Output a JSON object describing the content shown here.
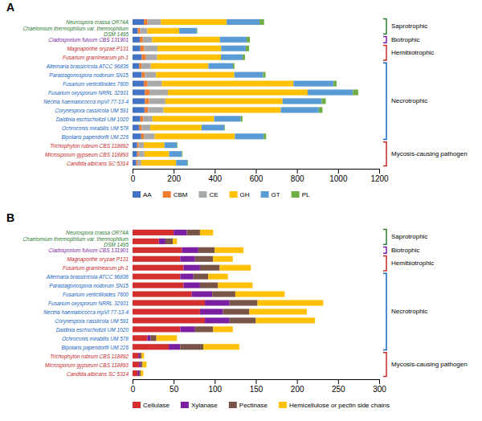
{
  "chart_data": [
    {
      "type": "bar",
      "orientation": "horizontal",
      "stacked": true,
      "grid": false,
      "title": "A",
      "categories": [
        "Neurospora crassa OR74A",
        "Chaetomium thermophilum var. thermophilum\nDSM 1495",
        "Cladosporium fulvum CBS 131901",
        "Magnaporthe oryzae P131",
        "Fusarium graminearum ph-1",
        "Alternaria brassicicola ATCC 96836",
        "Parastagonospora nodorum SN15",
        "Fusarium verticillioides 7600",
        "Fusarium oxysporum NRRL 32931",
        "Nectria haematococca mpVI 77-13-4",
        "Corynespora cassiicola UM 591",
        "Daldinia eschscholtzii UM 1020",
        "Ochroconis mirabilis UM 578",
        "Bipolaris papendorfii UM 226",
        "Trichophyton rubrum CBS 118892",
        "Microsporum gypseum CBS 118893",
        "Candida albicans SC 5314"
      ],
      "series": [
        {
          "name": "AA",
          "color": "#4472c4",
          "values": [
            55,
            25,
            35,
            38,
            45,
            32,
            45,
            55,
            60,
            60,
            58,
            38,
            32,
            42,
            22,
            22,
            18
          ]
        },
        {
          "name": "CBM",
          "color": "#ed7d31",
          "values": [
            18,
            12,
            15,
            18,
            20,
            12,
            15,
            18,
            22,
            20,
            18,
            14,
            12,
            14,
            8,
            8,
            6
          ]
        },
        {
          "name": "CE",
          "color": "#a9a9a9",
          "values": [
            65,
            35,
            45,
            65,
            55,
            45,
            55,
            70,
            90,
            80,
            75,
            45,
            42,
            52,
            25,
            28,
            18
          ]
        },
        {
          "name": "GH",
          "color": "#ffc000",
          "values": [
            320,
            155,
            330,
            310,
            310,
            280,
            380,
            640,
            680,
            570,
            570,
            300,
            250,
            390,
            100,
            120,
            170
          ]
        },
        {
          "name": "GT",
          "color": "#5b9bd5",
          "values": [
            160,
            85,
            130,
            120,
            105,
            120,
            140,
            195,
            220,
            190,
            185,
            130,
            110,
            140,
            60,
            62,
            55
          ]
        },
        {
          "name": "PL",
          "color": "#70ad47",
          "values": [
            22,
            3,
            16,
            16,
            12,
            7,
            12,
            15,
            26,
            20,
            18,
            8,
            3,
            12,
            3,
            3,
            3
          ]
        }
      ],
      "xlim": [
        0,
        1200
      ],
      "xticks": [
        0,
        200,
        400,
        600,
        800,
        1000,
        1200
      ],
      "annotations": [
        {
          "text": "Saprotrophic",
          "color": "#2e7d32",
          "from": "Neurospora crassa OR74A",
          "to": "Chaetomium thermophilum var. thermophilum\nDSM 1495"
        },
        {
          "text": "Biotrophic",
          "color": "#7b1fa2",
          "from": "Cladosporium fulvum CBS 131901",
          "to": "Cladosporium fulvum CBS 131901"
        },
        {
          "text": "Hemibiotrophic",
          "color": "#c62828",
          "from": "Magnaporthe oryzae P131",
          "to": "Fusarium graminearum ph-1"
        },
        {
          "text": "Necrotrophic",
          "color": "#1565c0",
          "from": "Alternaria brassicicola ATCC 96836",
          "to": "Bipolaris papendorfii UM 226"
        },
        {
          "text": "Mycosis-causing pathogen",
          "color": "#c62828",
          "from": "Trichophyton rubrum CBS 118892",
          "to": "Candida albicans SC 5314"
        }
      ]
    },
    {
      "type": "bar",
      "orientation": "horizontal",
      "stacked": true,
      "grid": false,
      "title": "B",
      "categories": [
        "Neurospora crassa OR74A",
        "Chaetomium thermophilum var. thermophilum\nDSM 1495",
        "Cladosporium fulvum CBS 131901",
        "Magnaporthe oryzae P131",
        "Fusarium graminearum ph-1",
        "Alternaria brassicicola ATCC 96836",
        "Parastagonospora nodorum SN15",
        "Fusarium verticillioides 7600",
        "Fusarium oxysporum NRRL 32931",
        "Nectria haematococca mpVI 77-13-4",
        "Corynespora cassiicola UM 591",
        "Daldinia eschscholtzii UM 1020",
        "Ochroconis mirabilis UM 578",
        "Bipolaris papendorfii UM 226",
        "Trichophyton rubrum CBS 118892",
        "Microsporum gypseum CBS 118893",
        "Candida albicans SC 5314"
      ],
      "series": [
        {
          "name": "Cellulase",
          "color": "#d32f2f",
          "values": [
            50,
            32,
            60,
            58,
            62,
            58,
            62,
            72,
            88,
            82,
            88,
            58,
            18,
            44,
            7,
            8,
            6
          ]
        },
        {
          "name": "Xylanase",
          "color": "#7b1fa2",
          "values": [
            16,
            8,
            20,
            18,
            20,
            16,
            20,
            25,
            30,
            28,
            30,
            18,
            4,
            14,
            2,
            2,
            2
          ]
        },
        {
          "name": "Pectinase",
          "color": "#795548",
          "values": [
            16,
            9,
            20,
            22,
            24,
            18,
            22,
            28,
            34,
            32,
            32,
            22,
            7,
            28,
            2,
            2,
            2
          ]
        },
        {
          "name": "Hemicellulose or pectin side chains",
          "color": "#ffc107",
          "values": [
            16,
            5,
            35,
            24,
            38,
            24,
            42,
            60,
            80,
            70,
            72,
            24,
            25,
            44,
            3,
            5,
            3
          ]
        }
      ],
      "xlim": [
        0,
        300
      ],
      "xticks": [
        0,
        50,
        100,
        150,
        200,
        250,
        300
      ],
      "annotations": [
        {
          "text": "Saprotrophic",
          "color": "#2e7d32",
          "from": "Neurospora crassa OR74A",
          "to": "Chaetomium thermophilum var. thermophilum\nDSM 1495"
        },
        {
          "text": "Biotrophic",
          "color": "#7b1fa2",
          "from": "Cladosporium fulvum CBS 131901",
          "to": "Cladosporium fulvum CBS 131901"
        },
        {
          "text": "Hemibiotrophic",
          "color": "#c62828",
          "from": "Magnaporthe oryzae P131",
          "to": "Fusarium graminearum ph-1"
        },
        {
          "text": "Necrotrophic",
          "color": "#1565c0",
          "from": "Alternaria brassicicola ATCC 96836",
          "to": "Bipolaris papendorfii UM 226"
        },
        {
          "text": "Mycosis-causing pathogen",
          "color": "#c62828",
          "from": "Trichophyton rubrum CBS 118892",
          "to": "Candida albicans SC 5314"
        }
      ]
    }
  ]
}
